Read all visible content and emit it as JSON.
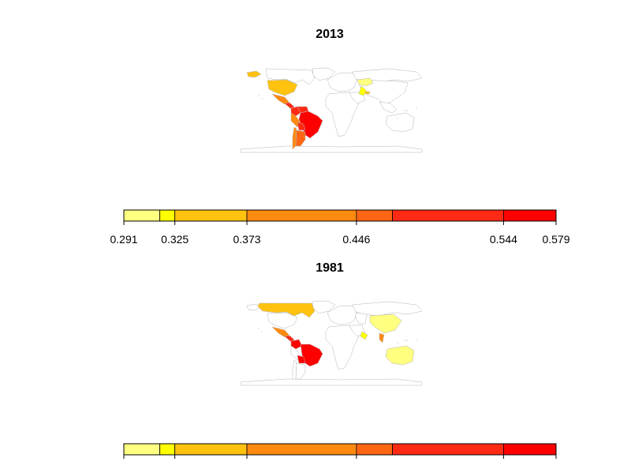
{
  "chart_data": [
    {
      "type": "choropleth",
      "title": "2013",
      "legend": {
        "type": "colorbar",
        "breaks": [
          0.291,
          0.325,
          0.373,
          0.446,
          0.544,
          0.579
        ],
        "tick_labels": [
          "0.291",
          "0.325",
          "0.373",
          "0.446",
          "0.544",
          "0.579"
        ],
        "segments": [
          {
            "from": 0.291,
            "to": 0.315,
            "color": "#FFFF80"
          },
          {
            "from": 0.315,
            "to": 0.325,
            "color": "#FFFF00"
          },
          {
            "from": 0.325,
            "to": 0.373,
            "color": "#FFC20F"
          },
          {
            "from": 0.373,
            "to": 0.446,
            "color": "#FF8A10"
          },
          {
            "from": 0.446,
            "to": 0.47,
            "color": "#FF6614"
          },
          {
            "from": 0.47,
            "to": 0.544,
            "color": "#FF2A14"
          },
          {
            "from": 0.544,
            "to": 0.579,
            "color": "#FF0000"
          }
        ]
      },
      "regions": [
        {
          "name": "Alaska",
          "color": "#FFC20F"
        },
        {
          "name": "United States",
          "color": "#FFC20F"
        },
        {
          "name": "Mexico",
          "color": "#FF8A10"
        },
        {
          "name": "Central America",
          "color": "#FF2A14"
        },
        {
          "name": "Colombia",
          "color": "#FF2A14"
        },
        {
          "name": "Venezuela",
          "color": "#FF2A14"
        },
        {
          "name": "Brazil",
          "color": "#FF0000"
        },
        {
          "name": "Peru",
          "color": "#FF8A10"
        },
        {
          "name": "Bolivia",
          "color": "#FF2A14"
        },
        {
          "name": "Chile",
          "color": "#FF8A10"
        },
        {
          "name": "Argentina",
          "color": "#FF6614"
        },
        {
          "name": "Kazakhstan",
          "color": "#FFFF80"
        },
        {
          "name": "India",
          "color": "#FFFF00"
        },
        {
          "name": "Nepal",
          "color": "#FFC20F"
        }
      ]
    },
    {
      "type": "choropleth",
      "title": "1981",
      "legend": {
        "type": "colorbar",
        "breaks": [
          0.291,
          0.325,
          0.373,
          0.446,
          0.544,
          0.579
        ],
        "tick_labels": [],
        "segments": [
          {
            "from": 0.291,
            "to": 0.315,
            "color": "#FFFF80"
          },
          {
            "from": 0.315,
            "to": 0.325,
            "color": "#FFFF00"
          },
          {
            "from": 0.325,
            "to": 0.373,
            "color": "#FFC20F"
          },
          {
            "from": 0.373,
            "to": 0.446,
            "color": "#FF8A10"
          },
          {
            "from": 0.446,
            "to": 0.47,
            "color": "#FF6614"
          },
          {
            "from": 0.47,
            "to": 0.544,
            "color": "#FF2A14"
          },
          {
            "from": 0.544,
            "to": 0.579,
            "color": "#FF0000"
          }
        ]
      },
      "regions": [
        {
          "name": "Canada",
          "color": "#FFC20F"
        },
        {
          "name": "Mexico",
          "color": "#FF8A10"
        },
        {
          "name": "Central America",
          "color": "#FF2A14"
        },
        {
          "name": "Colombia",
          "color": "#FF0000"
        },
        {
          "name": "Brazil",
          "color": "#FF0000"
        },
        {
          "name": "Bolivia",
          "color": "#FF0000"
        },
        {
          "name": "China",
          "color": "#FFFF80"
        },
        {
          "name": "India",
          "color": "#FFFF00"
        },
        {
          "name": "Thailand",
          "color": "#FF8A10"
        },
        {
          "name": "Australia",
          "color": "#FFFF80"
        }
      ]
    }
  ],
  "colors": {
    "border": "#B4B4B4",
    "frame": "#000000",
    "background": "#FFFFFF"
  }
}
